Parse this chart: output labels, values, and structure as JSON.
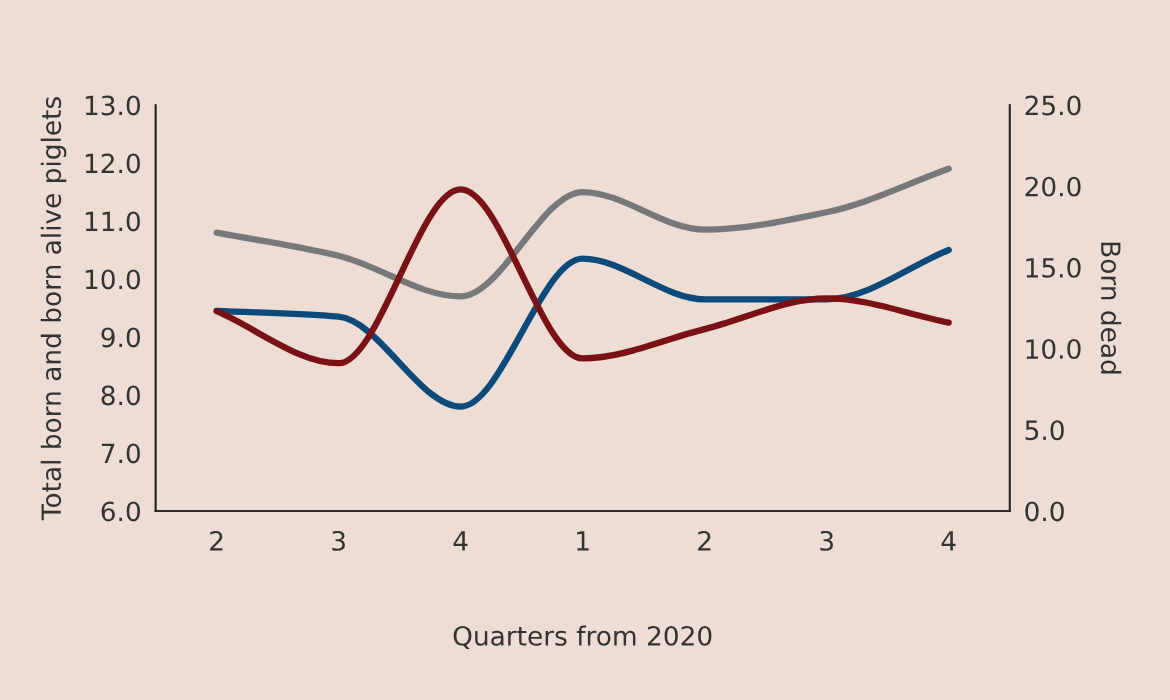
{
  "chart_data": {
    "type": "line",
    "categories": [
      "2",
      "3",
      "4",
      "1",
      "2",
      "3",
      "4"
    ],
    "xlabel": "Quarters from 2020",
    "ylabel": "Total born and born alive piglets",
    "y2label": "Born dead",
    "ylim": [
      6.0,
      13.0
    ],
    "yticks": [
      {
        "value": 6,
        "label": "6.0"
      },
      {
        "value": 7,
        "label": "7.0"
      },
      {
        "value": 8,
        "label": "8.0"
      },
      {
        "value": 9,
        "label": "9.0"
      },
      {
        "value": 10,
        "label": "10.0"
      },
      {
        "value": 11,
        "label": "11.0"
      },
      {
        "value": 12,
        "label": "12.0"
      },
      {
        "value": 13,
        "label": "13.0"
      }
    ],
    "y2lim": [
      0.0,
      25.0
    ],
    "y2ticks": [
      {
        "value": 0,
        "label": "0.0"
      },
      {
        "value": 5,
        "label": "5.0"
      },
      {
        "value": 10,
        "label": "10.0"
      },
      {
        "value": 15,
        "label": "15.0"
      },
      {
        "value": 20,
        "label": "20.0"
      },
      {
        "value": 25,
        "label": "25.0"
      }
    ],
    "grid": false,
    "marker": "none",
    "line_style": "solid",
    "series": [
      {
        "color": "#77787b",
        "values": [
          10.8,
          10.4,
          9.7,
          11.5,
          10.85,
          11.15,
          11.9
        ]
      },
      {
        "color": "#0b4a7a",
        "values": [
          9.45,
          9.35,
          7.8,
          10.35,
          9.65,
          9.65,
          10.5
        ]
      },
      {
        "color": "#7a1215",
        "axis": "y2",
        "values": [
          12.3,
          9.1,
          19.8,
          9.4,
          11.2,
          13.1,
          11.6
        ]
      }
    ]
  }
}
